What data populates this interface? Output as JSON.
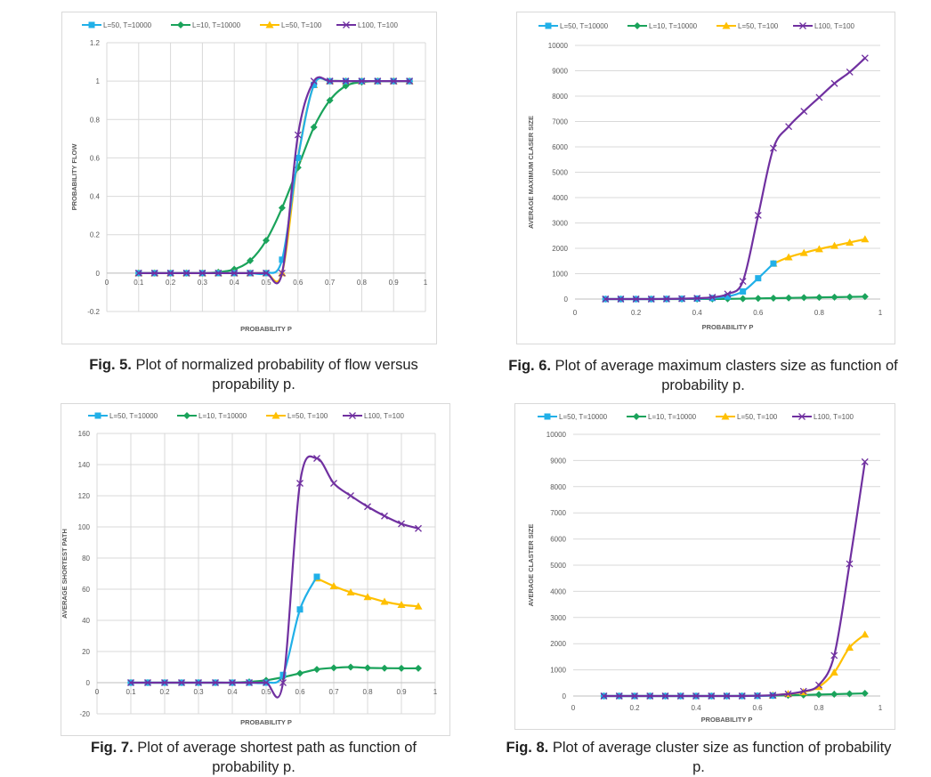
{
  "series_colors": [
    "#21b0e8",
    "#1aa35b",
    "#ffc000",
    "#7030a0"
  ],
  "chart_data": [
    {
      "type": "line",
      "caption_label": "Fig. 5.",
      "caption_text": "Plot of normalized probability of flow versus propability p.",
      "xlabel": "PROBABILITY P",
      "ylabel": "PROBABILITY FLOW",
      "xlim": [
        0,
        1
      ],
      "ylim": [
        -0.2,
        1.2
      ],
      "xticks": [
        0,
        0.1,
        0.2,
        0.3,
        0.4,
        0.5,
        0.6,
        0.7,
        0.8,
        0.9,
        1
      ],
      "xtick_labels": [
        "0",
        "0.1",
        "0.2",
        "0.3",
        "0.4",
        "0.5",
        "0.6",
        "0.7",
        "0.8",
        "0.9",
        "1"
      ],
      "yticks": [
        -0.2,
        0,
        0.2,
        0.4,
        0.6,
        0.8,
        1,
        1.2
      ],
      "ytick_labels": [
        "-0.2",
        "0",
        "0.2",
        "0.4",
        "0.6",
        "0.8",
        "1",
        "1.2"
      ],
      "vertical_grid": true,
      "legend_position": "top",
      "series": [
        {
          "name": "L=50, T=10000",
          "marker": "square",
          "x": [
            0.1,
            0.15,
            0.2,
            0.25,
            0.3,
            0.35,
            0.4,
            0.45,
            0.5,
            0.55,
            0.6,
            0.65,
            0.7,
            0.75,
            0.8,
            0.85,
            0.9,
            0.95
          ],
          "y": [
            0,
            0,
            0,
            0,
            0,
            0,
            0,
            0,
            0,
            0.07,
            0.6,
            0.98,
            1,
            1,
            1,
            1,
            1,
            1
          ]
        },
        {
          "name": "L=10, T=10000",
          "marker": "diamond",
          "x": [
            0.1,
            0.15,
            0.2,
            0.25,
            0.3,
            0.35,
            0.4,
            0.45,
            0.5,
            0.55,
            0.6,
            0.65,
            0.7,
            0.75,
            0.8,
            0.85,
            0.9,
            0.95
          ],
          "y": [
            0,
            0,
            0,
            0,
            0,
            0.005,
            0.02,
            0.065,
            0.17,
            0.34,
            0.55,
            0.76,
            0.9,
            0.975,
            0.995,
            1,
            1,
            1
          ]
        },
        {
          "name": "L=50, T=100",
          "marker": "triangle",
          "x": [
            0.1,
            0.15,
            0.2,
            0.25,
            0.3,
            0.35,
            0.4,
            0.45,
            0.5,
            0.55,
            0.6,
            0.65,
            0.7,
            0.75,
            0.8,
            0.85,
            0.9,
            0.95
          ],
          "y": [
            0,
            0,
            0,
            0,
            0,
            0,
            0,
            0,
            0,
            0,
            0.6,
            0.98,
            1,
            1,
            1,
            1,
            1,
            1
          ]
        },
        {
          "name": "L100, T=100",
          "marker": "x",
          "x": [
            0.1,
            0.15,
            0.2,
            0.25,
            0.3,
            0.35,
            0.4,
            0.45,
            0.5,
            0.55,
            0.6,
            0.65,
            0.7,
            0.75,
            0.8,
            0.85,
            0.9,
            0.95
          ],
          "y": [
            0,
            0,
            0,
            0,
            0,
            0,
            0,
            0,
            0,
            0,
            0.72,
            1,
            1,
            1,
            1,
            1,
            1,
            1
          ]
        }
      ]
    },
    {
      "type": "line",
      "caption_label": "Fig. 6.",
      "caption_text": "Plot of average maximum clasters size as function of probability p.",
      "xlabel": "PROBABILITY P",
      "ylabel": "AVERAGE MAXIMUM CLASER SIZE",
      "xlim": [
        0,
        1
      ],
      "ylim": [
        0,
        10000
      ],
      "xticks": [
        0,
        0.2,
        0.4,
        0.6,
        0.8,
        1
      ],
      "xtick_labels": [
        "0",
        "0.2",
        "0.4",
        "0.6",
        "0.8",
        "1"
      ],
      "yticks": [
        0,
        1000,
        2000,
        3000,
        4000,
        5000,
        6000,
        7000,
        8000,
        9000,
        10000
      ],
      "ytick_labels": [
        "0",
        "1000",
        "2000",
        "3000",
        "4000",
        "5000",
        "6000",
        "7000",
        "8000",
        "9000",
        "10000"
      ],
      "vertical_grid": false,
      "legend_position": "top",
      "series": [
        {
          "name": "L=50, T=10000",
          "marker": "square",
          "x": [
            0.1,
            0.15,
            0.2,
            0.25,
            0.3,
            0.35,
            0.4,
            0.45,
            0.5,
            0.55,
            0.6,
            0.65
          ],
          "y": [
            0,
            0,
            0,
            0,
            5,
            10,
            20,
            40,
            100,
            300,
            820,
            1400
          ]
        },
        {
          "name": "L=10, T=10000",
          "marker": "diamond",
          "x": [
            0.1,
            0.15,
            0.2,
            0.25,
            0.3,
            0.35,
            0.4,
            0.45,
            0.5,
            0.55,
            0.6,
            0.65,
            0.7,
            0.75,
            0.8,
            0.85,
            0.9,
            0.95
          ],
          "y": [
            0,
            0,
            0,
            0,
            0,
            1,
            2,
            4,
            8,
            15,
            25,
            35,
            45,
            55,
            65,
            75,
            85,
            95
          ]
        },
        {
          "name": "L=50, T=100",
          "marker": "triangle",
          "x": [
            0.65,
            0.7,
            0.75,
            0.8,
            0.85,
            0.9,
            0.95
          ],
          "y": [
            1400,
            1650,
            1820,
            1970,
            2100,
            2230,
            2360
          ]
        },
        {
          "name": "L100, T=100",
          "marker": "x",
          "x": [
            0.1,
            0.15,
            0.2,
            0.25,
            0.3,
            0.35,
            0.4,
            0.45,
            0.5,
            0.55,
            0.6,
            0.65,
            0.7,
            0.75,
            0.8,
            0.85,
            0.9,
            0.95
          ],
          "y": [
            0,
            0,
            0,
            0,
            5,
            15,
            30,
            70,
            200,
            700,
            3300,
            5950,
            6800,
            7400,
            7950,
            8500,
            8950,
            9500
          ]
        }
      ]
    },
    {
      "type": "line",
      "caption_label": "Fig. 7.",
      "caption_text": "Plot of average shortest path as function of probability p.",
      "xlabel": "PROBABILITY P",
      "ylabel": "AVERAGE SHORTEST PATH",
      "xlim": [
        0,
        1
      ],
      "ylim": [
        -20,
        160
      ],
      "xticks": [
        0,
        0.1,
        0.2,
        0.3,
        0.4,
        0.5,
        0.6,
        0.7,
        0.8,
        0.9,
        1
      ],
      "xtick_labels": [
        "0",
        "0.1",
        "0.2",
        "0.3",
        "0.4",
        "0.5",
        "0.6",
        "0.7",
        "0.8",
        "0.9",
        "1"
      ],
      "yticks": [
        -20,
        0,
        20,
        40,
        60,
        80,
        100,
        120,
        140,
        160
      ],
      "ytick_labels": [
        "-20",
        "0",
        "20",
        "40",
        "60",
        "80",
        "100",
        "120",
        "140",
        "160"
      ],
      "vertical_grid": true,
      "legend_position": "top",
      "series": [
        {
          "name": "L=50, T=10000",
          "marker": "square",
          "x": [
            0.1,
            0.15,
            0.2,
            0.25,
            0.3,
            0.35,
            0.4,
            0.45,
            0.5,
            0.55,
            0.6,
            0.65
          ],
          "y": [
            0,
            0,
            0,
            0,
            0,
            0,
            0,
            0,
            0,
            5,
            47,
            68
          ]
        },
        {
          "name": "L=10, T=10000",
          "marker": "diamond",
          "x": [
            0.1,
            0.15,
            0.2,
            0.25,
            0.3,
            0.35,
            0.4,
            0.45,
            0.5,
            0.55,
            0.6,
            0.65,
            0.7,
            0.75,
            0.8,
            0.85,
            0.9,
            0.95
          ],
          "y": [
            0,
            0,
            0,
            0,
            0,
            0,
            0,
            0.5,
            1.5,
            3.5,
            6,
            8.5,
            9.5,
            10,
            9.5,
            9.3,
            9.2,
            9.2
          ]
        },
        {
          "name": "L=50, T=100",
          "marker": "triangle",
          "x": [
            0.65,
            0.7,
            0.75,
            0.8,
            0.85,
            0.9,
            0.95
          ],
          "y": [
            67,
            62,
            58,
            55,
            52,
            50,
            49
          ]
        },
        {
          "name": "L100, T=100",
          "marker": "x",
          "x": [
            0.1,
            0.15,
            0.2,
            0.25,
            0.3,
            0.35,
            0.4,
            0.45,
            0.5,
            0.55,
            0.6,
            0.65,
            0.7,
            0.75,
            0.8,
            0.85,
            0.9,
            0.95
          ],
          "y": [
            0,
            0,
            0,
            0,
            0,
            0,
            0,
            0,
            0,
            0,
            128,
            144,
            128,
            120,
            113,
            107,
            102,
            99
          ]
        }
      ]
    },
    {
      "type": "line",
      "caption_label": "Fig. 8.",
      "caption_text": "Plot of average cluster size as function of probability p.",
      "xlabel": "PROBABILITY P",
      "ylabel": "AVERAGE CLASTER SIZE",
      "xlim": [
        0,
        1
      ],
      "ylim": [
        0,
        10000
      ],
      "xticks": [
        0,
        0.2,
        0.4,
        0.6,
        0.8,
        1
      ],
      "xtick_labels": [
        "0",
        "0.2",
        "0.4",
        "0.6",
        "0.8",
        "1"
      ],
      "yticks": [
        0,
        1000,
        2000,
        3000,
        4000,
        5000,
        6000,
        7000,
        8000,
        9000,
        10000
      ],
      "ytick_labels": [
        "0",
        "1000",
        "2000",
        "3000",
        "4000",
        "5000",
        "6000",
        "7000",
        "8000",
        "9000",
        "10000"
      ],
      "vertical_grid": false,
      "legend_position": "top",
      "series": [
        {
          "name": "L=50, T=10000",
          "marker": "square",
          "x": [
            0.1,
            0.15,
            0.2,
            0.25,
            0.3,
            0.35,
            0.4,
            0.45,
            0.5,
            0.55,
            0.6,
            0.65
          ],
          "y": [
            0,
            0,
            0,
            0,
            0,
            0,
            0,
            0,
            0,
            0,
            5,
            15
          ]
        },
        {
          "name": "L=10, T=10000",
          "marker": "diamond",
          "x": [
            0.1,
            0.15,
            0.2,
            0.25,
            0.3,
            0.35,
            0.4,
            0.45,
            0.5,
            0.55,
            0.6,
            0.65,
            0.7,
            0.75,
            0.8,
            0.85,
            0.9,
            0.95
          ],
          "y": [
            0,
            0,
            0,
            0,
            0,
            0,
            0,
            0,
            2,
            4,
            8,
            15,
            25,
            40,
            55,
            70,
            85,
            100
          ]
        },
        {
          "name": "L=50, T=100",
          "marker": "triangle",
          "x": [
            0.65,
            0.7,
            0.75,
            0.8,
            0.85,
            0.9,
            0.95
          ],
          "y": [
            30,
            80,
            150,
            350,
            900,
            1850,
            2350
          ]
        },
        {
          "name": "L100, T=100",
          "marker": "x",
          "x": [
            0.1,
            0.15,
            0.2,
            0.25,
            0.3,
            0.35,
            0.4,
            0.45,
            0.5,
            0.55,
            0.6,
            0.65,
            0.7,
            0.75,
            0.8,
            0.85,
            0.9,
            0.95
          ],
          "y": [
            0,
            0,
            0,
            0,
            0,
            0,
            0,
            0,
            0,
            0,
            10,
            30,
            80,
            180,
            420,
            1550,
            5050,
            8950
          ]
        }
      ]
    }
  ]
}
